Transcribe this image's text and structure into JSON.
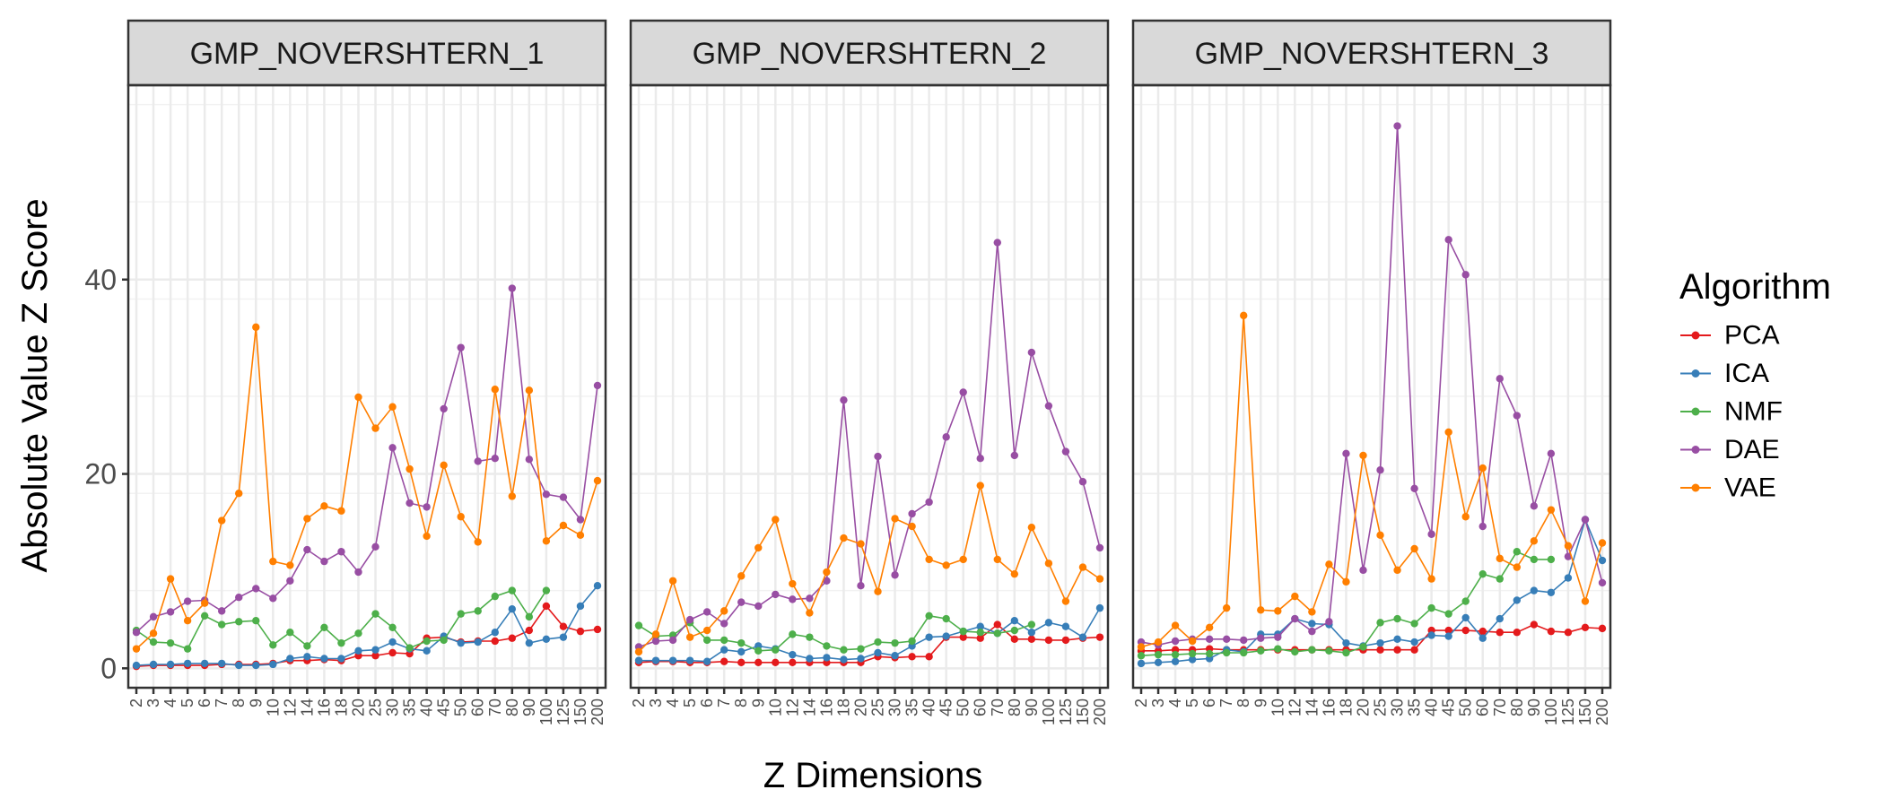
{
  "chart_data": {
    "type": "line",
    "ylabel": "Absolute Value Z Score",
    "xlabel": "Z Dimensions",
    "x": [
      "2",
      "3",
      "4",
      "5",
      "6",
      "7",
      "8",
      "9",
      "10",
      "12",
      "14",
      "16",
      "18",
      "20",
      "25",
      "30",
      "35",
      "40",
      "45",
      "50",
      "60",
      "70",
      "80",
      "90",
      "100",
      "125",
      "150",
      "200"
    ],
    "ylim": [
      -2,
      60
    ],
    "y_ticks": [
      0,
      20,
      40
    ],
    "y_tick_labels": [
      "0",
      "20",
      "40"
    ],
    "grid": true,
    "legend": {
      "title": "Algorithm",
      "position": "right",
      "entries": [
        "PCA",
        "ICA",
        "NMF",
        "DAE",
        "VAE"
      ]
    },
    "colors": {
      "PCA": "#E41A1C",
      "ICA": "#377EB8",
      "NMF": "#4DAF4A",
      "DAE": "#984EA3",
      "VAE": "#FF7F00"
    },
    "facets": [
      {
        "title": "GMP_NOVERSHTERN_1",
        "series": [
          {
            "name": "PCA",
            "values": [
              0.2,
              0.3,
              0.3,
              0.3,
              0.3,
              0.4,
              0.4,
              0.4,
              0.5,
              0.8,
              0.8,
              0.9,
              0.8,
              1.3,
              1.3,
              1.6,
              1.5,
              3.1,
              3.2,
              2.7,
              2.8,
              2.8,
              3.1,
              3.9,
              6.4,
              4.3,
              3.8,
              4.0
            ]
          },
          {
            "name": "ICA",
            "values": [
              0.3,
              0.4,
              0.4,
              0.5,
              0.5,
              0.5,
              0.3,
              0.3,
              0.4,
              1.0,
              1.2,
              1.0,
              1.0,
              1.8,
              1.9,
              2.7,
              2.0,
              1.8,
              3.3,
              2.6,
              2.7,
              3.7,
              6.1,
              2.6,
              3.0,
              3.2,
              6.4,
              8.5
            ]
          },
          {
            "name": "NMF",
            "values": [
              3.9,
              2.7,
              2.6,
              2.0,
              5.4,
              4.5,
              4.8,
              4.9,
              2.4,
              3.7,
              2.3,
              4.2,
              2.6,
              3.6,
              5.6,
              4.2,
              2.1,
              2.8,
              2.9,
              5.6,
              5.9,
              7.4,
              8.0,
              5.3,
              8.0,
              null,
              null,
              null
            ]
          },
          {
            "name": "DAE",
            "values": [
              3.7,
              5.3,
              5.8,
              6.9,
              7.0,
              5.9,
              7.3,
              8.2,
              7.2,
              9.0,
              12.2,
              11.0,
              12.0,
              9.9,
              12.5,
              22.7,
              17.0,
              16.6,
              26.7,
              33.0,
              21.3,
              21.6,
              39.1,
              21.5,
              17.9,
              17.6,
              15.3,
              29.1
            ]
          },
          {
            "name": "VAE",
            "values": [
              2.0,
              3.6,
              9.2,
              4.9,
              6.7,
              15.2,
              18.0,
              35.1,
              11.0,
              10.6,
              15.4,
              16.7,
              16.2,
              27.9,
              24.7,
              26.9,
              20.5,
              13.6,
              20.9,
              15.6,
              13.0,
              28.7,
              17.7,
              28.6,
              13.1,
              14.7,
              13.7,
              19.3
            ]
          }
        ]
      },
      {
        "title": "GMP_NOVERSHTERN_2",
        "series": [
          {
            "name": "PCA",
            "values": [
              0.6,
              0.7,
              0.7,
              0.6,
              0.6,
              0.7,
              0.6,
              0.6,
              0.6,
              0.6,
              0.6,
              0.6,
              0.6,
              0.6,
              1.2,
              1.1,
              1.2,
              1.2,
              3.2,
              3.2,
              3.1,
              4.5,
              3.0,
              3.0,
              2.9,
              2.9,
              3.1,
              3.2
            ]
          },
          {
            "name": "ICA",
            "values": [
              0.8,
              0.8,
              0.8,
              0.8,
              0.7,
              1.9,
              1.7,
              2.3,
              2.0,
              1.4,
              1.0,
              1.1,
              0.9,
              1.0,
              1.6,
              1.3,
              2.3,
              3.2,
              3.3,
              3.8,
              4.3,
              3.6,
              4.9,
              3.7,
              4.7,
              4.3,
              3.2,
              6.2
            ]
          },
          {
            "name": "NMF",
            "values": [
              4.4,
              3.3,
              3.4,
              4.7,
              2.9,
              2.9,
              2.6,
              1.8,
              1.9,
              3.5,
              3.2,
              2.3,
              1.9,
              2.0,
              2.7,
              2.6,
              2.8,
              5.4,
              5.1,
              3.8,
              3.7,
              3.6,
              3.9,
              4.5,
              null,
              null,
              null,
              null
            ]
          },
          {
            "name": "DAE",
            "values": [
              2.2,
              2.8,
              2.9,
              5.0,
              5.8,
              4.6,
              6.8,
              6.4,
              7.6,
              7.1,
              7.2,
              9.0,
              27.6,
              8.5,
              21.8,
              9.6,
              15.9,
              17.1,
              23.8,
              28.4,
              21.6,
              43.8,
              21.9,
              32.5,
              27.0,
              22.3,
              19.2,
              12.4
            ]
          },
          {
            "name": "VAE",
            "values": [
              1.7,
              3.5,
              9.0,
              3.2,
              3.9,
              5.9,
              9.5,
              12.4,
              15.3,
              8.7,
              5.7,
              9.9,
              13.4,
              12.8,
              7.9,
              15.4,
              14.6,
              11.2,
              10.6,
              11.2,
              18.8,
              11.2,
              9.7,
              14.5,
              10.8,
              6.9,
              10.4,
              9.2
            ]
          }
        ]
      },
      {
        "title": "GMP_NOVERSHTERN_3",
        "series": [
          {
            "name": "PCA",
            "values": [
              1.8,
              1.8,
              1.9,
              1.9,
              2.0,
              1.9,
              1.9,
              1.9,
              1.9,
              1.9,
              1.9,
              1.9,
              1.9,
              1.9,
              1.9,
              1.9,
              1.9,
              3.9,
              3.9,
              3.9,
              3.8,
              3.7,
              3.7,
              4.5,
              3.8,
              3.7,
              4.2,
              4.1
            ]
          },
          {
            "name": "ICA",
            "values": [
              0.5,
              0.6,
              0.7,
              0.9,
              1.0,
              1.9,
              1.7,
              3.5,
              3.5,
              5.1,
              4.6,
              4.5,
              2.6,
              2.3,
              2.6,
              3.0,
              2.7,
              3.4,
              3.3,
              5.2,
              3.1,
              5.1,
              7.0,
              8.0,
              7.8,
              9.3,
              15.3,
              11.1
            ]
          },
          {
            "name": "NMF",
            "values": [
              1.3,
              1.4,
              1.4,
              1.5,
              1.5,
              1.6,
              1.6,
              1.8,
              2.0,
              1.7,
              1.9,
              1.8,
              1.6,
              2.2,
              4.7,
              5.1,
              4.6,
              6.2,
              5.6,
              6.9,
              9.7,
              9.2,
              12.0,
              11.2,
              11.2,
              null,
              null,
              null
            ]
          },
          {
            "name": "DAE",
            "values": [
              2.7,
              2.4,
              2.8,
              3.0,
              3.0,
              3.0,
              2.9,
              3.1,
              3.2,
              5.1,
              3.8,
              4.8,
              22.1,
              10.1,
              20.4,
              55.8,
              18.5,
              13.8,
              44.1,
              40.5,
              14.6,
              29.8,
              26.0,
              16.7,
              22.1,
              11.5,
              15.3,
              8.8
            ]
          },
          {
            "name": "VAE",
            "values": [
              2.2,
              2.7,
              4.4,
              2.8,
              4.2,
              6.2,
              36.3,
              6.0,
              5.9,
              7.4,
              5.8,
              10.7,
              8.9,
              21.9,
              13.7,
              10.1,
              12.3,
              9.2,
              24.3,
              15.6,
              20.6,
              11.3,
              10.4,
              13.1,
              16.3,
              12.6,
              6.9,
              12.9
            ]
          }
        ]
      }
    ]
  }
}
